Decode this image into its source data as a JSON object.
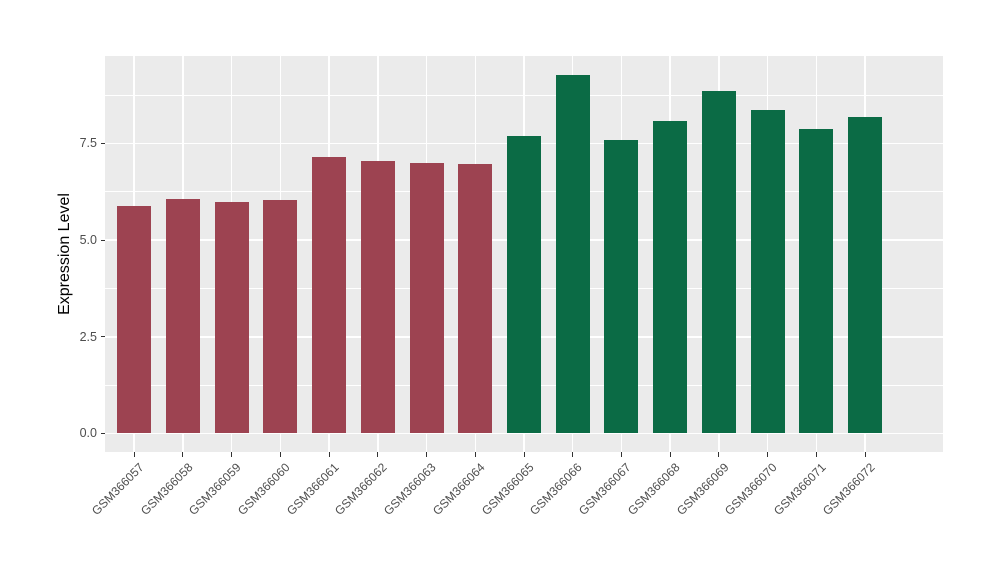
{
  "chart_data": {
    "type": "bar",
    "title": "",
    "xlabel": "",
    "ylabel": "Expression Level",
    "categories": [
      "GSM366057",
      "GSM366058",
      "GSM366059",
      "GSM366060",
      "GSM366061",
      "GSM366062",
      "GSM366063",
      "GSM366064",
      "GSM366065",
      "GSM366066",
      "GSM366067",
      "GSM366068",
      "GSM366069",
      "GSM366070",
      "GSM366071",
      "GSM366072"
    ],
    "values": [
      5.87,
      6.06,
      5.98,
      6.03,
      7.15,
      7.04,
      7.0,
      6.97,
      7.7,
      9.27,
      7.6,
      8.09,
      8.85,
      8.36,
      7.87,
      8.19
    ],
    "bar_groups": [
      {
        "name": "GSM366057-GSM366064",
        "color": "#9D4351",
        "first_index": 0,
        "last_index": 7
      },
      {
        "name": "GSM366065-GSM366072",
        "color": "#0B6B45",
        "first_index": 8,
        "last_index": 15
      }
    ],
    "ytick_labels": [
      "0.0",
      "2.5",
      "5.0",
      "7.5"
    ],
    "ytick_values": [
      0,
      2.5,
      5,
      7.5
    ],
    "minor_ytick_values": [
      1.25,
      3.75,
      6.25,
      8.75
    ],
    "ylim": [
      -0.48,
      9.76
    ],
    "bar_width_fraction": 0.7,
    "x_tick_rotation_deg": 45,
    "grid": "on",
    "legend": "none",
    "panel_background_color": "#EBEBEB",
    "gridline_color": "#FFFFFF",
    "axis_text_color": "#4D4D4D",
    "axis_title_color": "#000000",
    "tick_mark_color": "#333333"
  }
}
